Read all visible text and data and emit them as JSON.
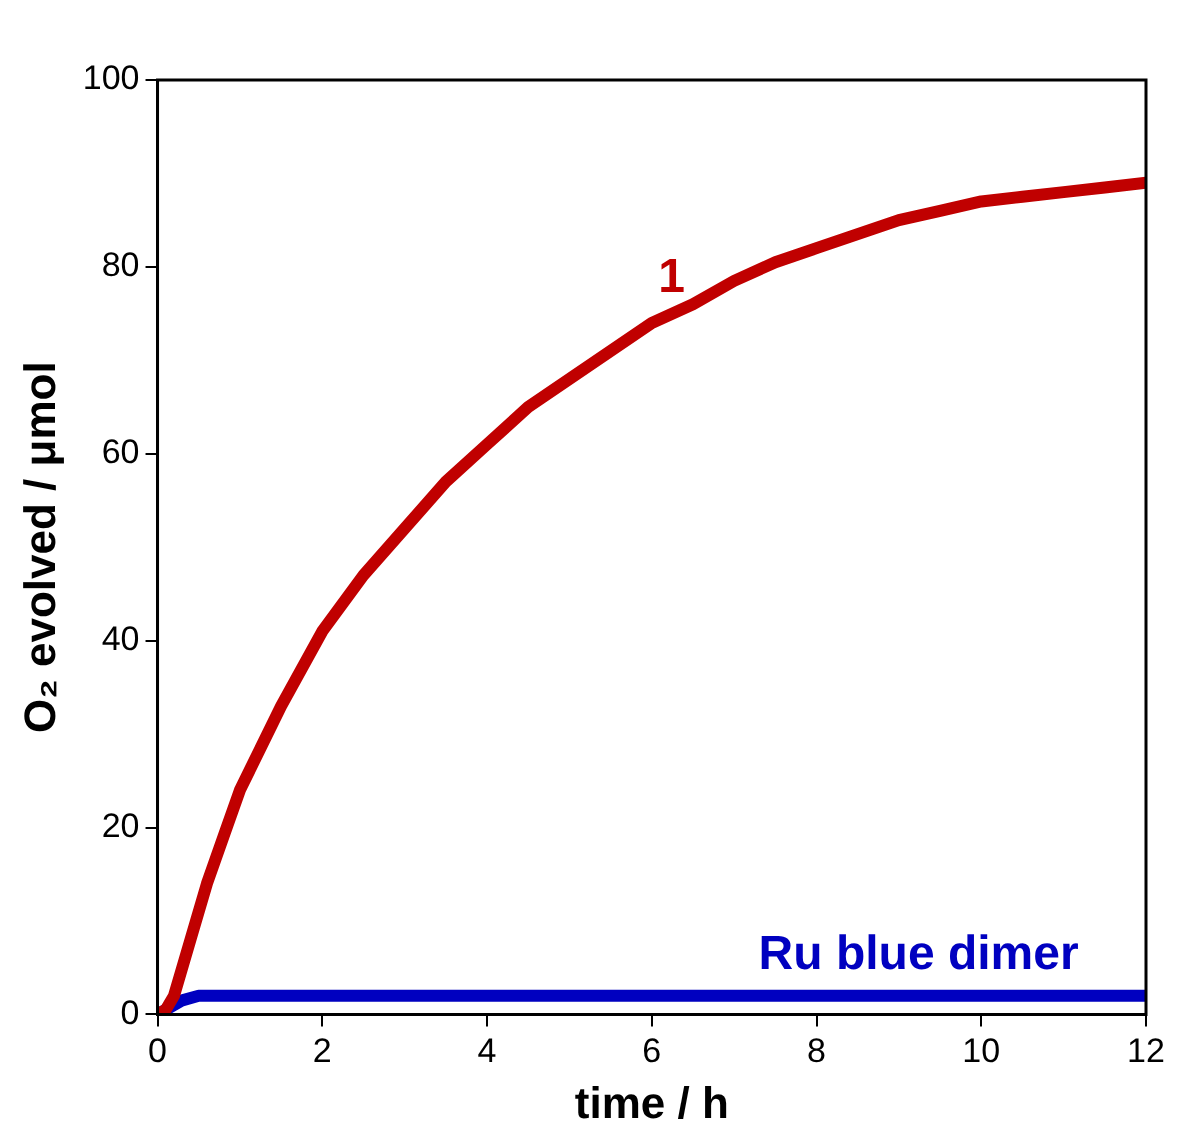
{
  "chart_data": {
    "type": "line",
    "xlabel": "time / h",
    "ylabel": "O₂ evolved / μmol",
    "xlim": [
      0,
      12
    ],
    "xticks": [
      0,
      2,
      4,
      6,
      8,
      10,
      12
    ],
    "ylim": [
      0,
      100
    ],
    "yticks": [
      0,
      20,
      40,
      60,
      80,
      100
    ],
    "grid": false,
    "legend": false,
    "marker": "none",
    "line_style": "solid",
    "series": [
      {
        "name": "1",
        "color": "#c00000",
        "x": [
          0,
          0.1,
          0.2,
          0.4,
          0.6,
          0.8,
          1,
          1.5,
          2,
          2.5,
          3,
          3.5,
          4,
          4.5,
          5,
          5.5,
          6,
          6.5,
          7,
          7.5,
          8,
          8.5,
          9,
          9.5,
          10,
          10.5,
          11,
          11.5,
          12
        ],
        "values": [
          0,
          0.5,
          2,
          8,
          14,
          19,
          24,
          33,
          41,
          47,
          52,
          57,
          61,
          65,
          68,
          71,
          74,
          76,
          78.5,
          80.5,
          82,
          83.5,
          85,
          86,
          87,
          87.5,
          88,
          88.5,
          89
        ]
      },
      {
        "name": "Ru blue dimer",
        "color": "#0000c0",
        "x": [
          0,
          0.1,
          0.2,
          0.3,
          0.5,
          1,
          2,
          4,
          6,
          8,
          10,
          12
        ],
        "values": [
          0,
          0.5,
          1,
          1.5,
          2,
          2,
          2,
          2,
          2,
          2,
          2,
          2
        ]
      }
    ]
  }
}
